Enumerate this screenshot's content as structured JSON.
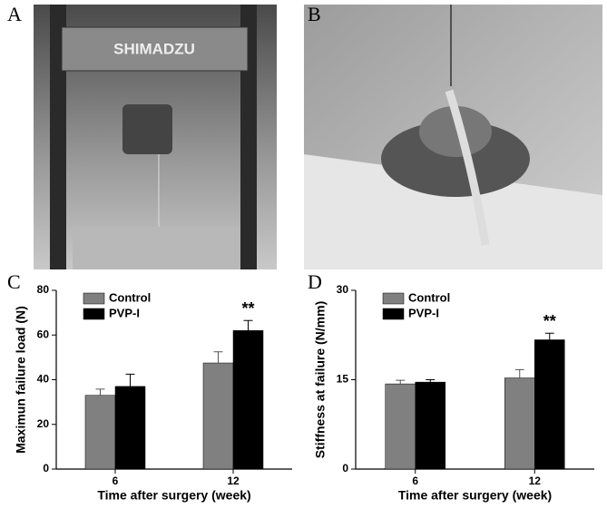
{
  "photos": [
    {
      "label": "A",
      "text": "SHIMADZU"
    },
    {
      "label": "B"
    }
  ],
  "chart_data": [
    {
      "type": "bar",
      "panel": "C",
      "ylabel": "Maximun failure load (N)",
      "xlabel": "Time after surgery (week)",
      "categories": [
        "6",
        "12"
      ],
      "series": [
        {
          "name": "Control",
          "color": "#808080",
          "values": [
            33,
            47.5
          ],
          "errors": [
            2.8,
            5
          ]
        },
        {
          "name": "PVP-I",
          "color": "#000000",
          "values": [
            37,
            62
          ],
          "errors": [
            5.5,
            4.5
          ]
        }
      ],
      "annotation": "**",
      "ylim": [
        0,
        80
      ],
      "yticks": [
        0,
        20,
        40,
        60,
        80
      ]
    },
    {
      "type": "bar",
      "panel": "D",
      "ylabel": "Stiffness at failure (N/mm)",
      "xlabel": "Time after surgery (week)",
      "categories": [
        "6",
        "12"
      ],
      "series": [
        {
          "name": "Control",
          "color": "#808080",
          "values": [
            14.3,
            15.3
          ],
          "errors": [
            0.6,
            1.4
          ]
        },
        {
          "name": "PVP-I",
          "color": "#000000",
          "values": [
            14.6,
            21.7
          ],
          "errors": [
            0.4,
            1.1
          ]
        }
      ],
      "annotation": "**",
      "ylim": [
        0,
        30
      ],
      "yticks": [
        0,
        15,
        30
      ]
    }
  ]
}
